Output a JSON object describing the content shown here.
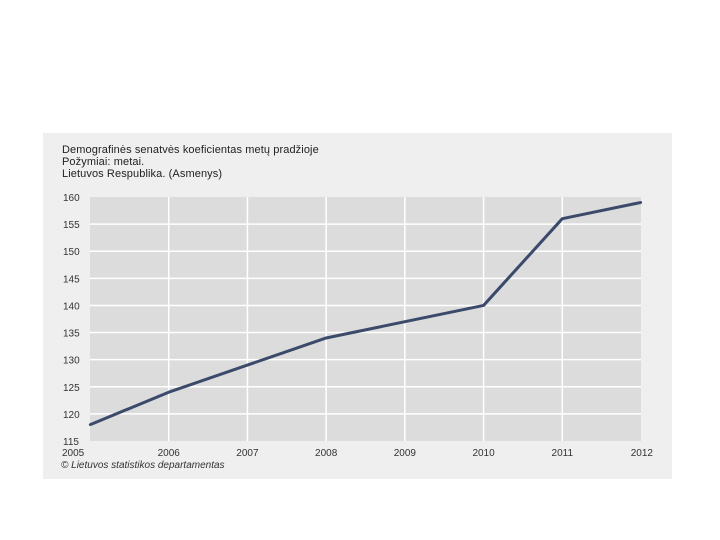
{
  "chart_data": {
    "type": "line",
    "title": "Demografinės senatvės koeficientas metų pradžioje",
    "subtitle": "Požymiai: metai.",
    "region": "Lietuvos Respublika. (Asmenys)",
    "source": "© Lietuvos statistikos departamentas",
    "x": [
      "2005",
      "2006",
      "2007",
      "2008",
      "2009",
      "2010",
      "2011",
      "2012"
    ],
    "series": [
      {
        "values": [
          118,
          124,
          129,
          134,
          137,
          140,
          156,
          159
        ]
      }
    ],
    "ylim": [
      115,
      160
    ],
    "yticks": [
      115,
      120,
      125,
      130,
      135,
      140,
      145,
      150,
      155,
      160
    ],
    "grid": true,
    "colors": {
      "line": "#3b4a6b",
      "plot_bg": "#dcdcdc",
      "panel_bg": "#f0eff0",
      "grid": "#ffffff"
    }
  }
}
